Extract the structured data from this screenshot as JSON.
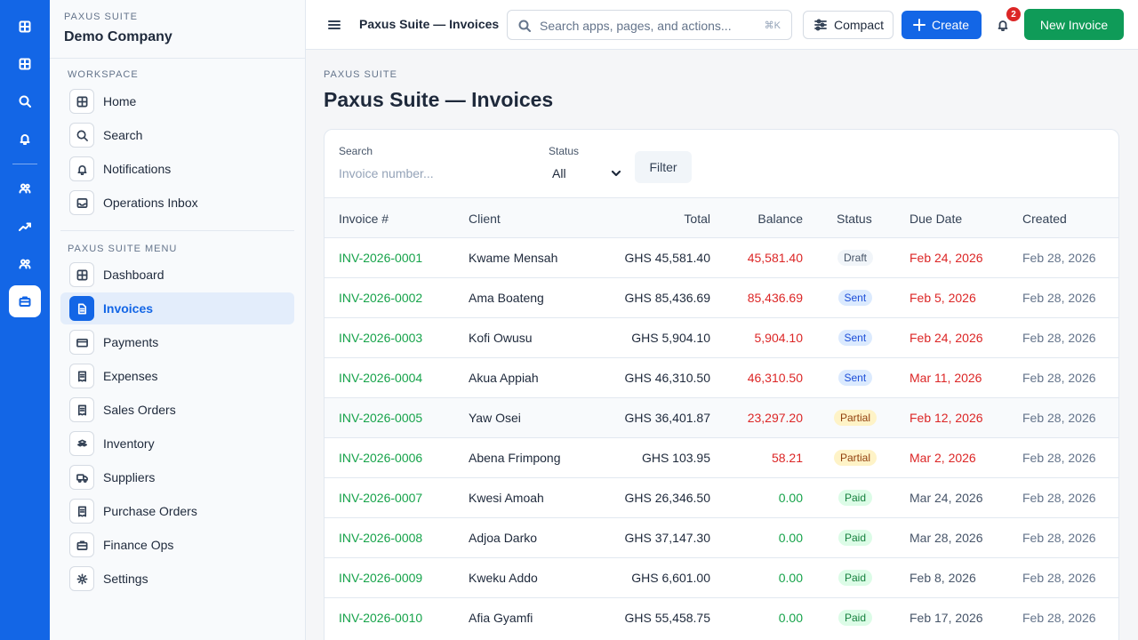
{
  "rail": {
    "items": [
      {
        "icon": "grid-icon"
      },
      {
        "icon": "grid-icon"
      },
      {
        "icon": "search-icon"
      },
      {
        "icon": "bell-icon"
      },
      {
        "icon": "users-icon"
      },
      {
        "icon": "trend-icon"
      },
      {
        "icon": "users-icon"
      },
      {
        "icon": "briefcase-icon",
        "active": true
      }
    ]
  },
  "sidebar": {
    "brand": "PAXUS SUITE",
    "company": "Demo Company",
    "workspace_label": "WORKSPACE",
    "menu_label": "PAXUS SUITE MENU",
    "workspace_items": [
      {
        "label": "Home",
        "icon": "grid-icon"
      },
      {
        "label": "Search",
        "icon": "search-icon"
      },
      {
        "label": "Notifications",
        "icon": "bell-icon"
      },
      {
        "label": "Operations Inbox",
        "icon": "inbox-icon"
      }
    ],
    "menu_items": [
      {
        "label": "Dashboard",
        "icon": "grid-icon"
      },
      {
        "label": "Invoices",
        "icon": "document-icon",
        "active": true
      },
      {
        "label": "Payments",
        "icon": "card-icon"
      },
      {
        "label": "Expenses",
        "icon": "receipt-icon"
      },
      {
        "label": "Sales Orders",
        "icon": "receipt-icon"
      },
      {
        "label": "Inventory",
        "icon": "boxes-icon"
      },
      {
        "label": "Suppliers",
        "icon": "truck-icon"
      },
      {
        "label": "Purchase Orders",
        "icon": "receipt-icon"
      },
      {
        "label": "Finance Ops",
        "icon": "briefcase-icon"
      },
      {
        "label": "Settings",
        "icon": "gear-icon"
      }
    ]
  },
  "topbar": {
    "title": "Paxus Suite — Invoices",
    "search_placeholder": "Search apps, pages, and actions...",
    "search_shortcut": "⌘K",
    "compact_label": "Compact",
    "create_label": "Create",
    "notification_count": "2",
    "new_invoice_label": "New Invoice"
  },
  "page": {
    "breadcrumb": "PAXUS SUITE",
    "title": "Paxus Suite — Invoices"
  },
  "filters": {
    "search_label": "Search",
    "search_placeholder": "Invoice number...",
    "status_label": "Status",
    "status_value": "All",
    "filter_button": "Filter"
  },
  "table": {
    "columns": [
      "Invoice #",
      "Client",
      "Total",
      "Balance",
      "Status",
      "Due Date",
      "Created"
    ],
    "rows": [
      {
        "number": "INV-2026-0001",
        "client": "Kwame Mensah",
        "total": "GHS 45,581.40",
        "balance": "45,581.40",
        "status": "Draft",
        "due": "Feb 24, 2026",
        "created": "Feb 28, 2026",
        "overdue": true
      },
      {
        "number": "INV-2026-0002",
        "client": "Ama Boateng",
        "total": "GHS 85,436.69",
        "balance": "85,436.69",
        "status": "Sent",
        "due": "Feb 5, 2026",
        "created": "Feb 28, 2026",
        "overdue": true
      },
      {
        "number": "INV-2026-0003",
        "client": "Kofi Owusu",
        "total": "GHS 5,904.10",
        "balance": "5,904.10",
        "status": "Sent",
        "due": "Feb 24, 2026",
        "created": "Feb 28, 2026",
        "overdue": true
      },
      {
        "number": "INV-2026-0004",
        "client": "Akua Appiah",
        "total": "GHS 46,310.50",
        "balance": "46,310.50",
        "status": "Sent",
        "due": "Mar 11, 2026",
        "created": "Feb 28, 2026",
        "overdue": true
      },
      {
        "number": "INV-2026-0005",
        "client": "Yaw Osei",
        "total": "GHS 36,401.87",
        "balance": "23,297.20",
        "status": "Partial",
        "due": "Feb 12, 2026",
        "created": "Feb 28, 2026",
        "overdue": true,
        "highlight": true
      },
      {
        "number": "INV-2026-0006",
        "client": "Abena Frimpong",
        "total": "GHS 103.95",
        "balance": "58.21",
        "status": "Partial",
        "due": "Mar 2, 2026",
        "created": "Feb 28, 2026",
        "overdue": true
      },
      {
        "number": "INV-2026-0007",
        "client": "Kwesi Amoah",
        "total": "GHS 26,346.50",
        "balance": "0.00",
        "status": "Paid",
        "due": "Mar 24, 2026",
        "created": "Feb 28, 2026",
        "overdue": false
      },
      {
        "number": "INV-2026-0008",
        "client": "Adjoa Darko",
        "total": "GHS 37,147.30",
        "balance": "0.00",
        "status": "Paid",
        "due": "Mar 28, 2026",
        "created": "Feb 28, 2026",
        "overdue": false
      },
      {
        "number": "INV-2026-0009",
        "client": "Kweku Addo",
        "total": "GHS 6,601.00",
        "balance": "0.00",
        "status": "Paid",
        "due": "Feb 8, 2026",
        "created": "Feb 28, 2026",
        "overdue": false
      },
      {
        "number": "INV-2026-0010",
        "client": "Afia Gyamfi",
        "total": "GHS 55,458.75",
        "balance": "0.00",
        "status": "Paid",
        "due": "Feb 17, 2026",
        "created": "Feb 28, 2026",
        "overdue": false
      }
    ]
  },
  "colors": {
    "primary": "#1366e6",
    "success": "#0f9b58",
    "danger": "#dc2626",
    "link": "#16a34a",
    "status": {
      "Draft": {
        "bg": "#f1f5f9",
        "fg": "#475569"
      },
      "Sent": {
        "bg": "#dbeafe",
        "fg": "#1d4ed8"
      },
      "Partial": {
        "bg": "#fef3c7",
        "fg": "#92400e"
      },
      "Paid": {
        "bg": "#dcfce7",
        "fg": "#15803d"
      }
    }
  }
}
